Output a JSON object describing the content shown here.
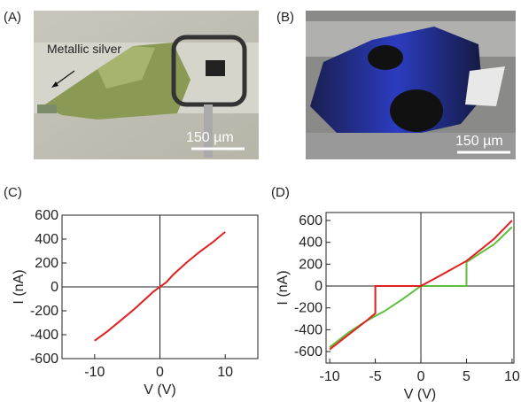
{
  "panels": [
    {
      "label": "(A)",
      "annotation": "Metallic silver",
      "scale_bar": "150 µm"
    },
    {
      "label": "(B)",
      "scale_bar": "150 µm"
    }
  ],
  "chart_data": [
    {
      "type": "line",
      "label": "(C)",
      "xlabel": "V (V)",
      "ylabel": "I (nA)",
      "xlim": [
        -15,
        15
      ],
      "xticks": [
        -10,
        0,
        10
      ],
      "ylim": [
        -600,
        600
      ],
      "yticks": [
        -600,
        -400,
        -200,
        0,
        200,
        400,
        600
      ],
      "origin_axes": true,
      "series": [
        {
          "color": "#e02020",
          "x": [
            -10,
            -8,
            -6,
            -4,
            -2,
            -1,
            0,
            1,
            2,
            4,
            6,
            8,
            10
          ],
          "values": [
            -450,
            -370,
            -280,
            -190,
            -90,
            -40,
            0,
            40,
            100,
            200,
            290,
            370,
            460
          ]
        }
      ]
    },
    {
      "type": "line",
      "label": "(D)",
      "xlabel": "V (V)",
      "ylabel": "I (nA)",
      "xlim": [
        -10.4,
        10.2
      ],
      "xticks": [
        -10,
        -5,
        0,
        5,
        10
      ],
      "ylim": [
        -705,
        673
      ],
      "yticks": [
        -600,
        -400,
        -200,
        0,
        200,
        400,
        600
      ],
      "origin_axes": true,
      "series": [
        {
          "color": "#5fbf3a",
          "x": [
            -10,
            -8,
            -6,
            -4,
            -2,
            0,
            2,
            4,
            5,
            5,
            8,
            10
          ],
          "values": [
            -560,
            -430,
            -320,
            -230,
            -120,
            0,
            0,
            0,
            0,
            220,
            380,
            540
          ]
        },
        {
          "color": "#e02020",
          "x": [
            -10,
            -8,
            -6,
            -5,
            -5,
            0,
            2,
            5,
            8,
            10
          ],
          "values": [
            -580,
            -450,
            -320,
            -250,
            0,
            0,
            90,
            230,
            430,
            600
          ]
        }
      ]
    }
  ]
}
